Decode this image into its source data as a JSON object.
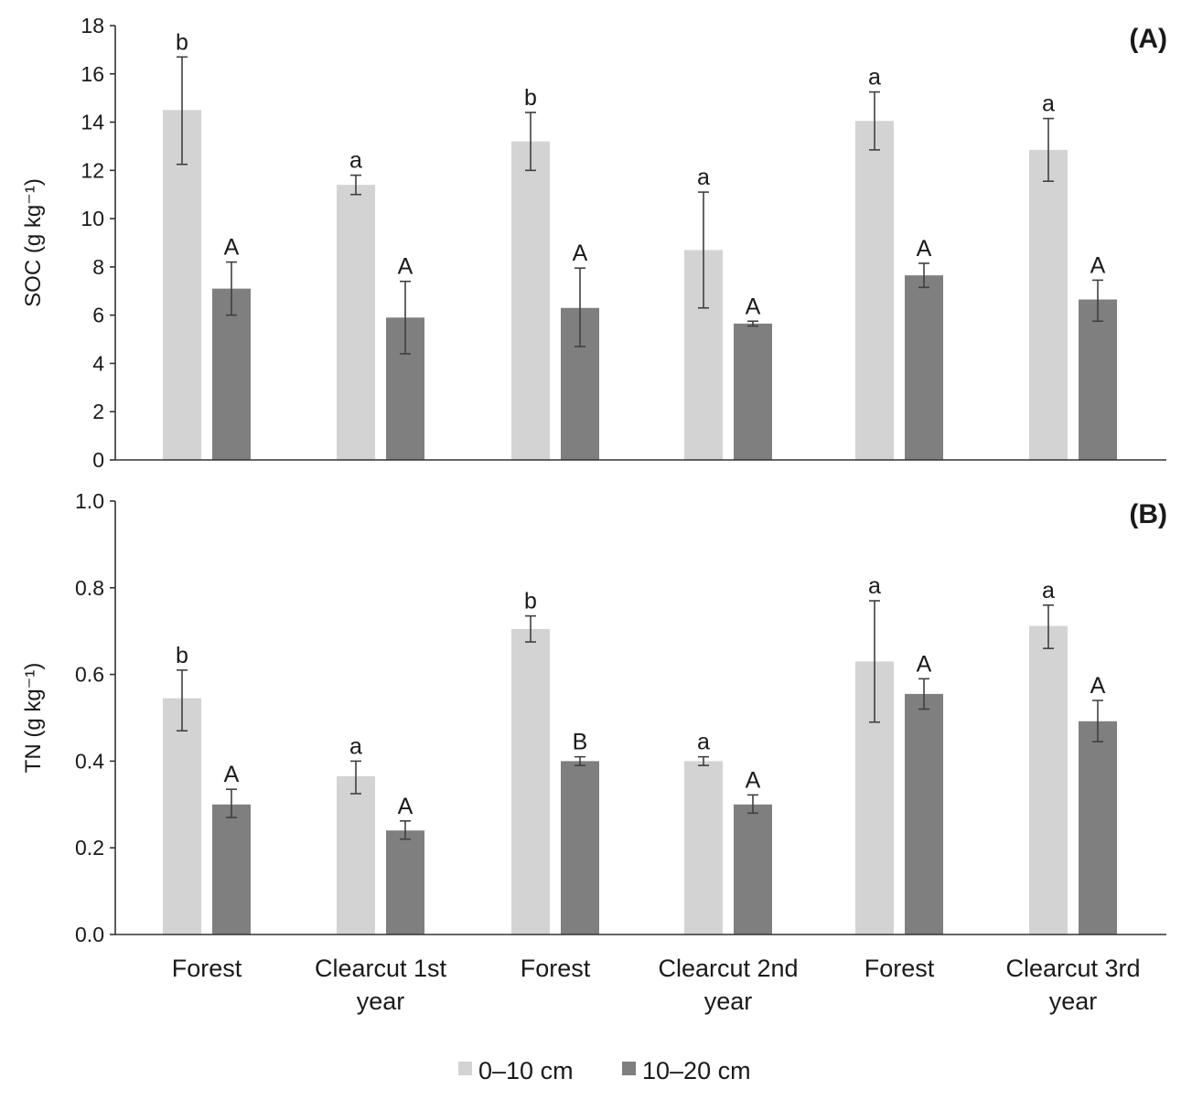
{
  "categories": [
    [
      "Forest"
    ],
    [
      "Clearcut 1st",
      "year"
    ],
    [
      "Forest"
    ],
    [
      "Clearcut 2nd",
      "year"
    ],
    [
      "Forest"
    ],
    [
      "Clearcut 3rd",
      "year"
    ]
  ],
  "colors": {
    "s0": "#d3d3d3",
    "s1": "#7f7f7f",
    "axis": "#333333",
    "error": "#404040"
  },
  "legend": [
    {
      "name": "0–10 cm",
      "color": "#d3d3d3"
    },
    {
      "name": "10–20 cm",
      "color": "#7f7f7f"
    }
  ],
  "chart_data": [
    {
      "type": "bar",
      "panel_label": "(A)",
      "ylabel": "SOC (g kg⁻¹)",
      "ylim": [
        0,
        18
      ],
      "yticks": [
        "0",
        "2",
        "4",
        "6",
        "8",
        "10",
        "12",
        "14",
        "16",
        "18"
      ],
      "ytick_values": [
        0,
        2,
        4,
        6,
        8,
        10,
        12,
        14,
        16,
        18
      ],
      "series": [
        {
          "name": "0–10 cm",
          "values": [
            14.5,
            11.4,
            13.2,
            8.7,
            14.05,
            12.85
          ],
          "error_low": [
            12.25,
            11.0,
            12.0,
            6.3,
            12.85,
            11.55
          ],
          "error_high": [
            16.7,
            11.8,
            14.4,
            11.1,
            15.25,
            14.15
          ],
          "letters": [
            "b",
            "a",
            "b",
            "a",
            "a",
            "a"
          ]
        },
        {
          "name": "10–20 cm",
          "values": [
            7.1,
            5.9,
            6.3,
            5.65,
            7.65,
            6.65
          ],
          "error_low": [
            6.0,
            4.4,
            4.7,
            5.55,
            7.15,
            5.75
          ],
          "error_high": [
            8.2,
            7.4,
            7.95,
            5.75,
            8.15,
            7.45
          ],
          "letters": [
            "A",
            "A",
            "A",
            "A",
            "A",
            "A"
          ]
        }
      ]
    },
    {
      "type": "bar",
      "panel_label": "(B)",
      "ylabel": "TN (g kg⁻¹)",
      "ylim": [
        0,
        1.0
      ],
      "yticks": [
        "0.0",
        "0.2",
        "0.4",
        "0.6",
        "0.8",
        "1.0"
      ],
      "ytick_values": [
        0,
        0.2,
        0.4,
        0.6,
        0.8,
        1.0
      ],
      "series": [
        {
          "name": "0–10 cm",
          "values": [
            0.545,
            0.365,
            0.705,
            0.4,
            0.63,
            0.712
          ],
          "error_low": [
            0.47,
            0.325,
            0.675,
            0.39,
            0.49,
            0.66
          ],
          "error_high": [
            0.61,
            0.4,
            0.735,
            0.41,
            0.77,
            0.76
          ],
          "letters": [
            "b",
            "a",
            "b",
            "a",
            "a",
            "a"
          ]
        },
        {
          "name": "10–20 cm",
          "values": [
            0.3,
            0.24,
            0.4,
            0.3,
            0.555,
            0.492
          ],
          "error_low": [
            0.27,
            0.22,
            0.39,
            0.28,
            0.52,
            0.445
          ],
          "error_high": [
            0.335,
            0.262,
            0.41,
            0.322,
            0.59,
            0.54
          ],
          "letters": [
            "A",
            "A",
            "B",
            "A",
            "A",
            "A"
          ]
        }
      ]
    }
  ]
}
